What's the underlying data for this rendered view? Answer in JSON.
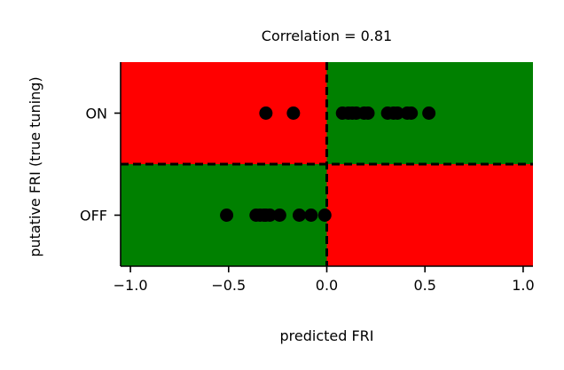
{
  "chart_data": {
    "type": "scatter",
    "title": "Correlation = 0.81",
    "xlabel": "predicted FRI",
    "ylabel": "putative FRI (true tuning)",
    "xlim": [
      -1.05,
      1.05
    ],
    "ylim": [
      -0.5,
      1.5
    ],
    "x_ticks": [
      -1.0,
      -0.5,
      0.0,
      0.5,
      1.0
    ],
    "x_tick_labels": [
      "−1.0",
      "−0.5",
      "0.0",
      "0.5",
      "1.0"
    ],
    "y_ticks": [
      0,
      1
    ],
    "y_tick_labels": [
      "OFF",
      "ON"
    ],
    "grid": false,
    "divider_x": 0.0,
    "divider_y": 0.5,
    "quadrant_colors": {
      "top_left": "#ff0000",
      "top_right": "#008000",
      "bottom_left": "#008000",
      "bottom_right": "#ff0000"
    },
    "marker_color": "#000000",
    "series": [
      {
        "category": "ON",
        "y": 1,
        "x": [
          -0.31,
          -0.17,
          0.08,
          0.11,
          0.13,
          0.15,
          0.19,
          0.21,
          0.31,
          0.34,
          0.36,
          0.41,
          0.43,
          0.52
        ]
      },
      {
        "category": "OFF",
        "y": 0,
        "x": [
          -0.51,
          -0.36,
          -0.34,
          -0.32,
          -0.31,
          -0.29,
          -0.24,
          -0.14,
          -0.08,
          -0.01
        ]
      }
    ]
  }
}
